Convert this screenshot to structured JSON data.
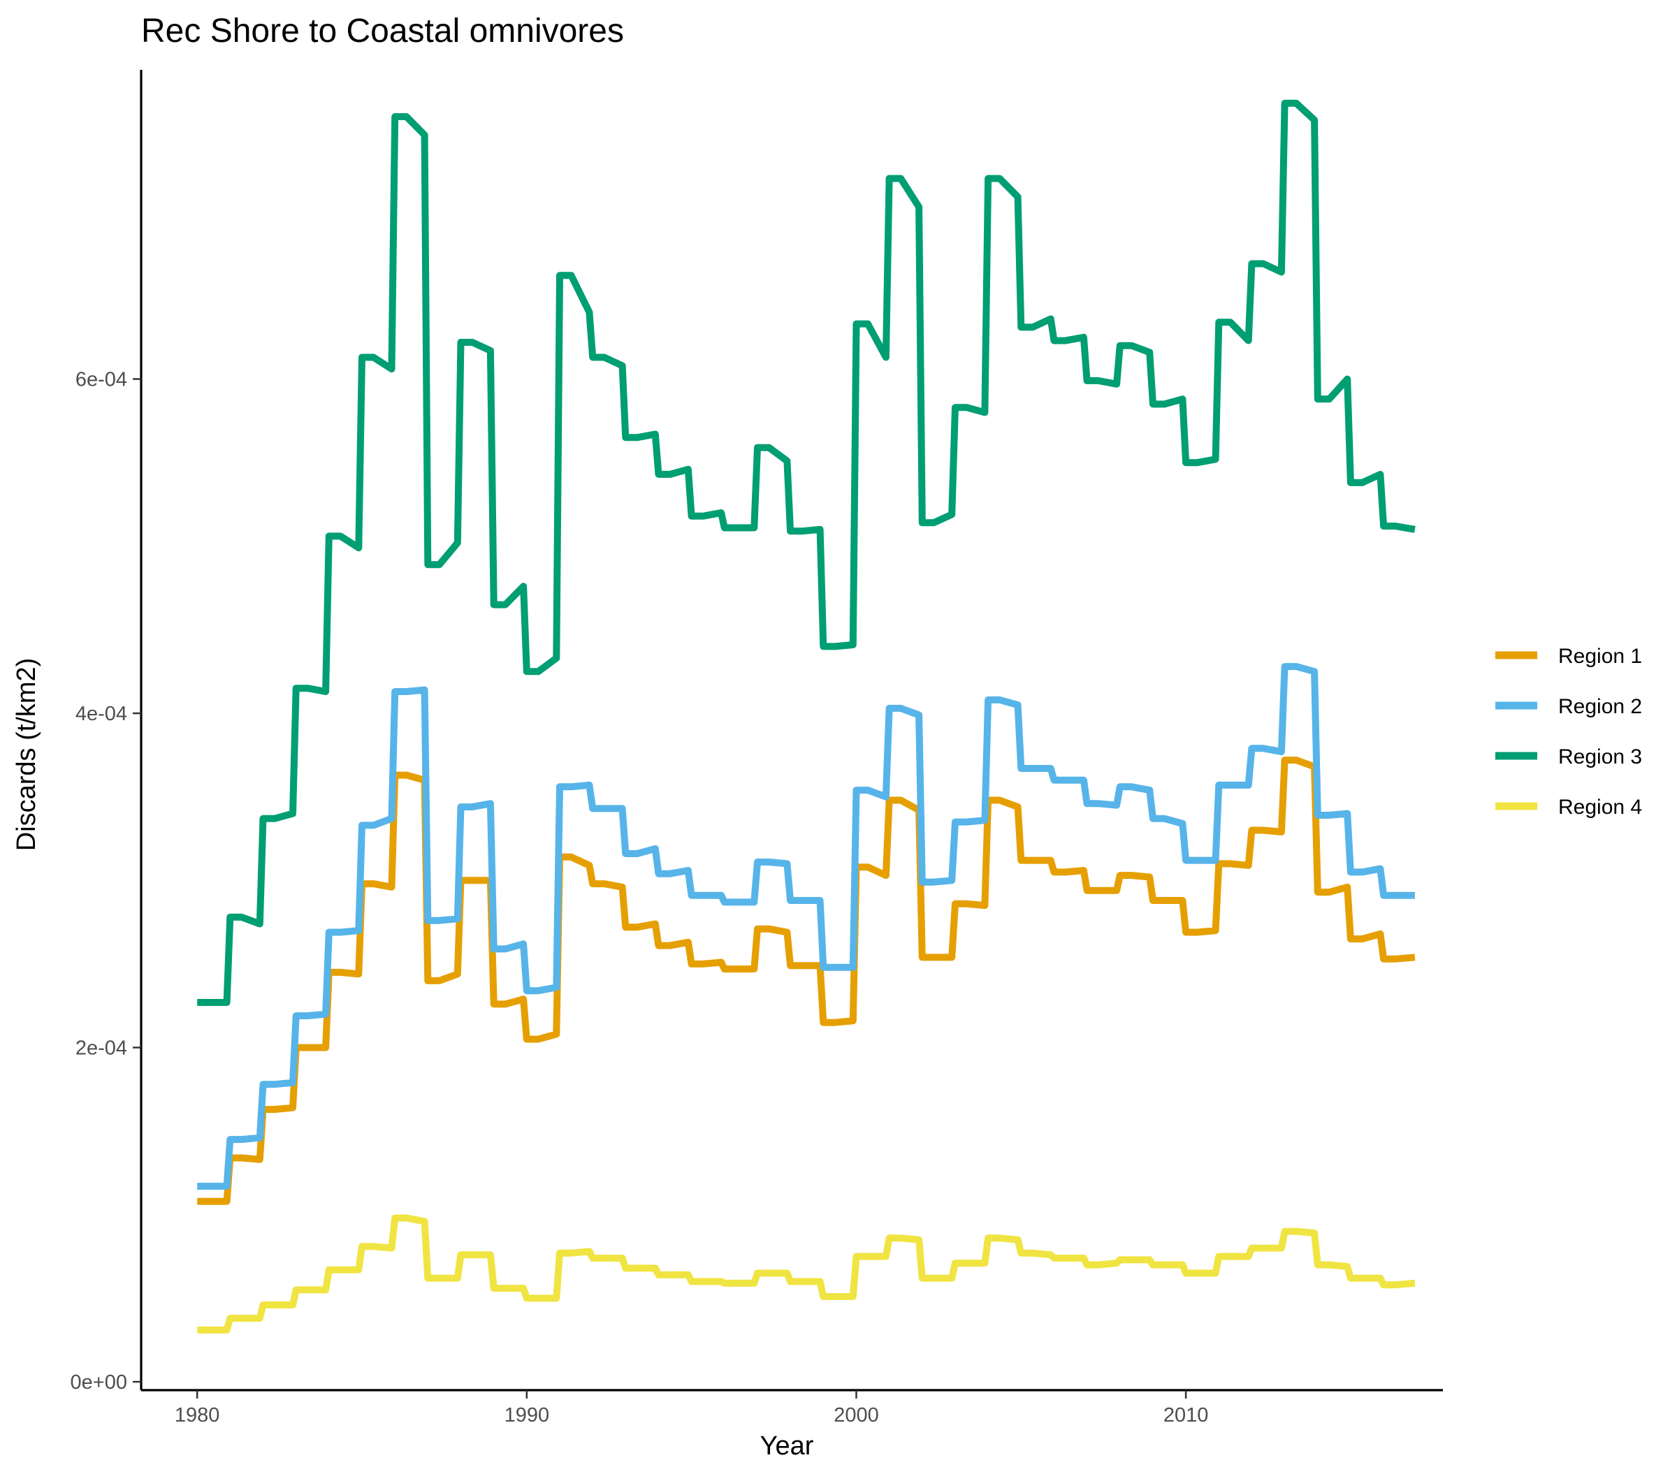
{
  "chart_data": {
    "type": "line",
    "title": "Rec Shore to Coastal omnivores",
    "xlabel": "Year",
    "ylabel": "Discards (t/km2)",
    "xlim": [
      1978.3,
      2017.8
    ],
    "ylim": [
      -5e-06,
      0.000785
    ],
    "x_ticks": [
      1980,
      1990,
      2000,
      2010
    ],
    "x_tick_labels": [
      "1980",
      "1990",
      "2000",
      "2010"
    ],
    "y_ticks": [
      0,
      0.0002,
      0.0004,
      0.0006
    ],
    "y_tick_labels": [
      "0e+00",
      "2e-04",
      "4e-04",
      "6e-04"
    ],
    "grid": false,
    "legend_position": "right",
    "x": [
      1980,
      1981,
      1982,
      1983,
      1984,
      1985,
      1986,
      1987,
      1988,
      1989,
      1990,
      1991,
      1992,
      1993,
      1994,
      1995,
      1996,
      1997,
      1998,
      1999,
      2000,
      2001,
      2002,
      2003,
      2004,
      2005,
      2006,
      2007,
      2008,
      2009,
      2010,
      2011,
      2012,
      2013,
      2014,
      2015,
      2016
    ],
    "series": [
      {
        "name": "Region 1",
        "color": "#E69F00",
        "segments": [
          [
            0.000108,
            0.000108
          ],
          [
            0.000134,
            0.000133
          ],
          [
            0.000163,
            0.000164
          ],
          [
            0.0002,
            0.0002
          ],
          [
            0.000245,
            0.000244
          ],
          [
            0.000298,
            0.000296
          ],
          [
            0.000363,
            0.00036
          ],
          [
            0.00024,
            0.000244
          ],
          [
            0.0003,
            0.0003
          ],
          [
            0.000226,
            0.000229
          ],
          [
            0.000205,
            0.000208
          ],
          [
            0.000314,
            0.000309
          ],
          [
            0.000298,
            0.000296
          ],
          [
            0.000272,
            0.000274
          ],
          [
            0.000261,
            0.000263
          ],
          [
            0.00025,
            0.000251
          ],
          [
            0.000247,
            0.000247
          ],
          [
            0.000271,
            0.000269
          ],
          [
            0.000249,
            0.000249
          ],
          [
            0.000215,
            0.000216
          ],
          [
            0.000308,
            0.000303
          ],
          [
            0.000348,
            0.000342
          ],
          [
            0.000254,
            0.000254
          ],
          [
            0.000286,
            0.000285
          ],
          [
            0.000348,
            0.000344
          ],
          [
            0.000312,
            0.000312
          ],
          [
            0.000305,
            0.000306
          ],
          [
            0.000294,
            0.000294
          ],
          [
            0.000303,
            0.000302
          ],
          [
            0.000288,
            0.000288
          ],
          [
            0.000269,
            0.00027
          ],
          [
            0.00031,
            0.000309
          ],
          [
            0.00033,
            0.000329
          ],
          [
            0.000372,
            0.000368
          ],
          [
            0.000293,
            0.000296
          ],
          [
            0.000265,
            0.000268
          ],
          [
            0.000253,
            0.000254
          ]
        ]
      },
      {
        "name": "Region 2",
        "color": "#56B4E9",
        "segments": [
          [
            0.000117,
            0.000117
          ],
          [
            0.000145,
            0.000146
          ],
          [
            0.000178,
            0.000179
          ],
          [
            0.000219,
            0.00022
          ],
          [
            0.000269,
            0.00027
          ],
          [
            0.000333,
            0.000337
          ],
          [
            0.000413,
            0.000414
          ],
          [
            0.000276,
            0.000277
          ],
          [
            0.000344,
            0.000346
          ],
          [
            0.000259,
            0.000262
          ],
          [
            0.000234,
            0.000236
          ],
          [
            0.000356,
            0.000357
          ],
          [
            0.000343,
            0.000343
          ],
          [
            0.000316,
            0.000319
          ],
          [
            0.000304,
            0.000306
          ],
          [
            0.000291,
            0.000291
          ],
          [
            0.000287,
            0.000287
          ],
          [
            0.000311,
            0.00031
          ],
          [
            0.000288,
            0.000288
          ],
          [
            0.000248,
            0.000248
          ],
          [
            0.000354,
            0.00035
          ],
          [
            0.000403,
            0.000399
          ],
          [
            0.000299,
            0.0003
          ],
          [
            0.000335,
            0.000336
          ],
          [
            0.000408,
            0.000405
          ],
          [
            0.000367,
            0.000367
          ],
          [
            0.00036,
            0.00036
          ],
          [
            0.000346,
            0.000345
          ],
          [
            0.000356,
            0.000354
          ],
          [
            0.000337,
            0.000334
          ],
          [
            0.000312,
            0.000312
          ],
          [
            0.000357,
            0.000357
          ],
          [
            0.000379,
            0.000377
          ],
          [
            0.000428,
            0.000425
          ],
          [
            0.000339,
            0.00034
          ],
          [
            0.000305,
            0.000307
          ],
          [
            0.000291,
            0.000291
          ]
        ]
      },
      {
        "name": "Region 3",
        "color": "#009E73",
        "segments": [
          [
            0.000227,
            0.000227
          ],
          [
            0.000278,
            0.000274
          ],
          [
            0.000337,
            0.00034
          ],
          [
            0.000415,
            0.000413
          ],
          [
            0.000506,
            0.000499
          ],
          [
            0.000613,
            0.000606
          ],
          [
            0.000757,
            0.000746
          ],
          [
            0.000489,
            0.000502
          ],
          [
            0.000622,
            0.000617
          ],
          [
            0.000465,
            0.000476
          ],
          [
            0.000425,
            0.000433
          ],
          [
            0.000662,
            0.00064
          ],
          [
            0.000613,
            0.000608
          ],
          [
            0.000565,
            0.000567
          ],
          [
            0.000543,
            0.000546
          ],
          [
            0.000518,
            0.00052
          ],
          [
            0.000511,
            0.000511
          ],
          [
            0.000559,
            0.000551
          ],
          [
            0.000509,
            0.00051
          ],
          [
            0.00044,
            0.000441
          ],
          [
            0.000633,
            0.000613
          ],
          [
            0.00072,
            0.000703
          ],
          [
            0.000514,
            0.000519
          ],
          [
            0.000583,
            0.00058
          ],
          [
            0.00072,
            0.000709
          ],
          [
            0.000631,
            0.000636
          ],
          [
            0.000623,
            0.000625
          ],
          [
            0.000599,
            0.000597
          ],
          [
            0.00062,
            0.000616
          ],
          [
            0.000585,
            0.000588
          ],
          [
            0.00055,
            0.000552
          ],
          [
            0.000634,
            0.000623
          ],
          [
            0.000669,
            0.000664
          ],
          [
            0.000765,
            0.000755
          ],
          [
            0.000588,
            0.0006
          ],
          [
            0.000538,
            0.000543
          ],
          [
            0.000512,
            0.00051
          ]
        ]
      },
      {
        "name": "Region 4",
        "color": "#F0E442",
        "segments": [
          [
            3.1e-05,
            3.1e-05
          ],
          [
            3.8e-05,
            3.8e-05
          ],
          [
            4.6e-05,
            4.6e-05
          ],
          [
            5.5e-05,
            5.5e-05
          ],
          [
            6.7e-05,
            6.7e-05
          ],
          [
            8.1e-05,
            8e-05
          ],
          [
            9.8e-05,
            9.6e-05
          ],
          [
            6.2e-05,
            6.2e-05
          ],
          [
            7.6e-05,
            7.6e-05
          ],
          [
            5.6e-05,
            5.6e-05
          ],
          [
            5e-05,
            5e-05
          ],
          [
            7.7e-05,
            7.8e-05
          ],
          [
            7.4e-05,
            7.4e-05
          ],
          [
            6.8e-05,
            6.8e-05
          ],
          [
            6.4e-05,
            6.4e-05
          ],
          [
            6e-05,
            6e-05
          ],
          [
            5.9e-05,
            5.9e-05
          ],
          [
            6.5e-05,
            6.5e-05
          ],
          [
            6e-05,
            6e-05
          ],
          [
            5.1e-05,
            5.1e-05
          ],
          [
            7.5e-05,
            7.5e-05
          ],
          [
            8.6e-05,
            8.5e-05
          ],
          [
            6.2e-05,
            6.2e-05
          ],
          [
            7.1e-05,
            7.1e-05
          ],
          [
            8.6e-05,
            8.5e-05
          ],
          [
            7.7e-05,
            7.6e-05
          ],
          [
            7.4e-05,
            7.4e-05
          ],
          [
            7e-05,
            7.1e-05
          ],
          [
            7.3e-05,
            7.3e-05
          ],
          [
            7e-05,
            7e-05
          ],
          [
            6.5e-05,
            6.5e-05
          ],
          [
            7.5e-05,
            7.5e-05
          ],
          [
            8e-05,
            8e-05
          ],
          [
            9e-05,
            8.9e-05
          ],
          [
            7e-05,
            6.9e-05
          ],
          [
            6.2e-05,
            6.2e-05
          ],
          [
            5.8e-05,
            5.9e-05
          ]
        ]
      }
    ]
  }
}
